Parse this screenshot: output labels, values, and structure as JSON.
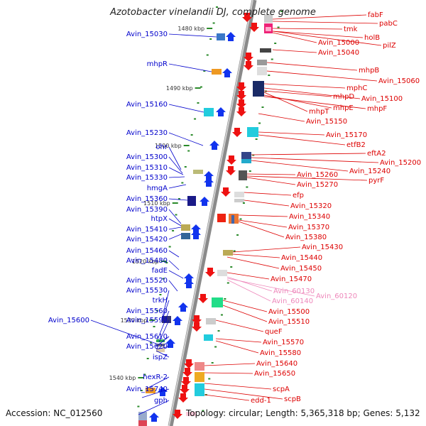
{
  "title": "Azotobacter vinelandii DJ, complete genome",
  "footer": {
    "accession": "Accession: NC_012560",
    "summary": "Topology: circular; Length: 5,365,318 bp; Genes: 5,132"
  },
  "colors": {
    "left_labels": "#0000cc",
    "right_labels": "#dd0000",
    "rna_labels": "#ee88bb",
    "backbone": "#888888",
    "tick": "#2a8a2a"
  },
  "kbp_markers": [
    "1480 kbp",
    "1490 kbp",
    "1500 kbp",
    "1510 kbp",
    "1520 kbp",
    "1530 kbp",
    "1540 kbp"
  ],
  "left_labels": [
    "Avin_15030",
    "mhpR",
    "Avin_15160",
    "Avin_15230",
    "ohr",
    "Avin_15300",
    "Avin_15310",
    "Avin_15330",
    "hmgA",
    "Avin_15360",
    "Avin_15390",
    "htpX",
    "Avin_15410",
    "Avin_15420",
    "Avin_15460",
    "Avin_15480",
    "fadE",
    "Avin_15520",
    "Avin_15530",
    "trkH",
    "Avin_15560",
    "Avin_15590",
    "Avin_15600",
    "Avin_15610",
    "Avin_15620",
    "ispZ",
    "hexR-2",
    "Avin_15740",
    "gph"
  ],
  "right_labels": [
    "fabF",
    "pabC",
    "tmk",
    "holB",
    "Avin_15000",
    "pilZ",
    "Avin_15040",
    "mhpB",
    "Avin_15060",
    "mphC",
    "Avin_15100",
    "mhpD",
    "mhpE",
    "mhpF",
    "mhpT",
    "Avin_15150",
    "Avin_15170",
    "etfB2",
    "eftA2",
    "Avin_15200",
    "Avin_15240",
    "Avin_15260",
    "pyrF",
    "Avin_15270",
    "efp",
    "Avin_15320",
    "Avin_15340",
    "Avin_15370",
    "Avin_15380",
    "Avin_15430",
    "Avin_15440",
    "Avin_15450",
    "Avin_15470",
    "Avin_15500",
    "Avin_15510",
    "queF",
    "Avin_15570",
    "Avin_15580",
    "Avin_15640",
    "Avin_15650",
    "scpA",
    "scpB",
    "edd-1"
  ],
  "rna_labels": [
    "Avin_60130",
    "Avin_60120",
    "Avin_60140"
  ]
}
